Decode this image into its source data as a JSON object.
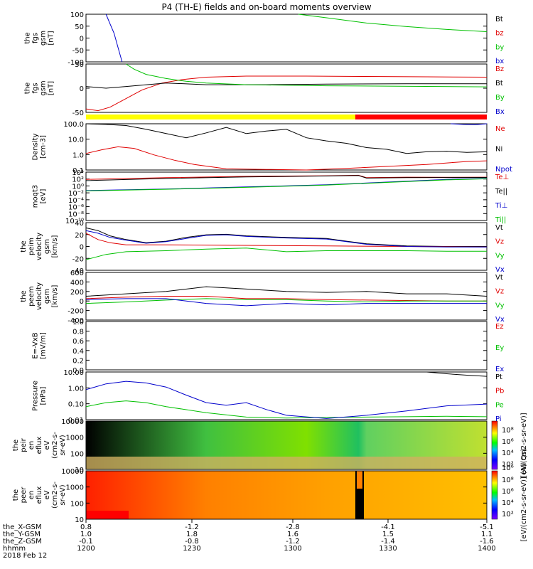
{
  "title": "P4 (TH-E) fields and on-board moments overview",
  "colors": {
    "black": "#000000",
    "red": "#e00000",
    "green": "#00c000",
    "blue": "#0000cc",
    "yellow": "#ffff00",
    "barRed": "#ff0000"
  },
  "time_axis": {
    "ticks": [
      "1200",
      "1230",
      "1300",
      "1330",
      "1400"
    ],
    "rows": [
      {
        "label": "the_X-GSM",
        "values": [
          "0.8",
          "-1.2",
          "-2.8",
          "-4.1",
          "-5.1"
        ]
      },
      {
        "label": "the_Y-GSM",
        "values": [
          "1.0",
          "1.8",
          "1.6",
          "1.5",
          "1.1"
        ]
      },
      {
        "label": "the_Z-GSM",
        "values": [
          "-0.1",
          "-0.8",
          "-1.2",
          "-1.4",
          "-1.6"
        ]
      },
      {
        "label": "hhmm",
        "values": [
          "1200",
          "1230",
          "1300",
          "1330",
          "1400"
        ]
      }
    ],
    "date": "2018 Feb 12"
  },
  "chart_data": [
    {
      "type": "line",
      "ylabel": [
        "the",
        "fgs",
        "gsm",
        "[nT]"
      ],
      "ylim": [
        -100,
        100
      ],
      "yticks": [
        "100",
        "50",
        "0",
        "-50",
        "-100"
      ],
      "series": [
        {
          "name": "Bt",
          "color": "black",
          "x": [
            0,
            17,
            57
          ],
          "y": [
            104,
            101,
            106
          ]
        },
        {
          "name": "bz",
          "color": "red",
          "x": [],
          "y": []
        },
        {
          "name": "by",
          "color": "green",
          "x": [
            53,
            60,
            70,
            80,
            90,
            100
          ],
          "y": [
            110,
            85,
            63,
            48,
            36,
            27
          ]
        },
        {
          "name": "bx",
          "color": "blue",
          "x": [
            5,
            6,
            7,
            8,
            9
          ],
          "y": [
            110,
            60,
            20,
            -40,
            -100
          ]
        }
      ]
    },
    {
      "type": "line",
      "ylabel": [
        "the",
        "fgs",
        "gsm",
        "[nT]"
      ],
      "ylim": [
        -80,
        60
      ],
      "yticks": [
        "50",
        "0",
        "-50"
      ],
      "series": [
        {
          "name": "Bz",
          "color": "red",
          "x": [
            0,
            3,
            6,
            10,
            14,
            19,
            24,
            30,
            40,
            55,
            70,
            85,
            100
          ],
          "y": [
            -70,
            -75,
            -65,
            -40,
            -15,
            5,
            15,
            22,
            25,
            25,
            24,
            23,
            22
          ]
        },
        {
          "name": "Bt",
          "color": "black",
          "x": [
            0,
            5,
            10,
            20,
            30,
            45,
            60,
            80,
            100
          ],
          "y": [
            -5,
            -10,
            -5,
            5,
            0,
            0,
            2,
            3,
            3
          ]
        },
        {
          "name": "By",
          "color": "green",
          "x": [
            10,
            12,
            15,
            20,
            25,
            30,
            40,
            60,
            100
          ],
          "y": [
            60,
            45,
            30,
            18,
            10,
            5,
            0,
            -3,
            -6
          ]
        },
        {
          "name": "Bx",
          "color": "blue",
          "x": [],
          "y": []
        }
      ]
    },
    {
      "type": "line",
      "scale": "log",
      "ylabel": [
        "Density",
        "[cm-3]"
      ],
      "ylim": [
        0.1,
        200
      ],
      "yticks": [
        "100.0",
        "10.0",
        "1.0",
        "0.1"
      ],
      "series": [
        {
          "name": "Ne",
          "color": "red",
          "x": [
            0,
            4,
            8,
            12,
            17,
            22,
            27,
            35,
            45,
            55,
            65,
            75,
            85,
            95,
            100
          ],
          "y": [
            1.5,
            2.8,
            4.5,
            3.5,
            1.2,
            0.5,
            0.25,
            0.12,
            0.11,
            0.1,
            0.13,
            0.18,
            0.25,
            0.4,
            0.45
          ]
        },
        {
          "name": "Ni",
          "color": "black",
          "x": [
            0,
            5,
            10,
            15,
            20,
            25,
            30,
            35,
            40,
            45,
            50,
            55,
            60,
            65,
            70,
            75,
            80,
            85,
            90,
            95,
            100
          ],
          "y": [
            200,
            180,
            150,
            80,
            40,
            20,
            45,
            110,
            40,
            60,
            80,
            20,
            12,
            8,
            4,
            3,
            1.5,
            2,
            2.2,
            1.8,
            2
          ]
        },
        {
          "name": "Npot",
          "color": "blue",
          "x": [
            91,
            94,
            97,
            100
          ],
          "y": [
            200,
            180,
            170,
            200
          ]
        }
      ]
    },
    {
      "type": "line",
      "scale": "log",
      "ylabel": [
        "moqt3",
        "[eV]"
      ],
      "ylim": [
        1,
        10000
      ],
      "yticks": [
        "10⁴",
        "10²",
        "10⁰",
        "10⁻²",
        "10⁻⁴",
        "10⁻⁶",
        "10⁻⁸",
        "10⁻¹⁰"
      ],
      "series": [
        {
          "name": "Te⊥",
          "color": "red",
          "x": [
            0,
            20,
            40,
            60,
            68,
            70,
            80,
            90,
            100
          ],
          "y": [
            2500,
            3500,
            4500,
            5000,
            5500,
            3500,
            3800,
            3700,
            3800
          ]
        },
        {
          "name": "Te||",
          "color": "black",
          "x": [
            0,
            20,
            40,
            60,
            68,
            70,
            80,
            100
          ],
          "y": [
            2000,
            3000,
            4000,
            4800,
            5200,
            3200,
            3500,
            3600
          ]
        },
        {
          "name": "Ti⊥",
          "color": "blue",
          "x": [
            0,
            20,
            40,
            60,
            75,
            90,
            100
          ],
          "y": [
            300,
            400,
            600,
            900,
            1500,
            2500,
            3000
          ]
        },
        {
          "name": "Ti||",
          "color": "green",
          "x": [
            0,
            20,
            40,
            60,
            75,
            90,
            100
          ],
          "y": [
            280,
            380,
            550,
            850,
            1400,
            2300,
            2800
          ]
        }
      ]
    },
    {
      "type": "line",
      "ylabel": [
        "the",
        "peim",
        "velocity",
        "gsm",
        "[km/s]"
      ],
      "ylim": [
        -40,
        50
      ],
      "yticks": [
        "40",
        "20",
        "0",
        "-20",
        "-40"
      ],
      "series": [
        {
          "name": "Vt",
          "color": "black",
          "x": [
            0,
            3,
            6,
            10,
            15,
            20,
            25,
            30,
            35,
            40,
            50,
            60,
            65,
            70,
            80,
            90,
            100
          ],
          "y": [
            40,
            35,
            25,
            18,
            12,
            15,
            22,
            27,
            28,
            25,
            22,
            20,
            15,
            10,
            6,
            5,
            5
          ]
        },
        {
          "name": "Vz",
          "color": "red",
          "x": [
            0,
            3,
            6,
            10,
            20,
            40,
            60,
            80,
            100
          ],
          "y": [
            30,
            18,
            12,
            8,
            8,
            7,
            6,
            5,
            4
          ]
        },
        {
          "name": "Vy",
          "color": "green",
          "x": [
            0,
            5,
            10,
            20,
            30,
            40,
            50,
            60,
            70,
            80,
            90,
            100
          ],
          "y": [
            -20,
            -10,
            -5,
            -3,
            0,
            2,
            -5,
            -3,
            -3,
            -3,
            -4,
            -4
          ]
        },
        {
          "name": "Vx",
          "color": "blue",
          "x": [
            0,
            3,
            6,
            10,
            15,
            20,
            25,
            30,
            35,
            40,
            50,
            60,
            65,
            70,
            80,
            90,
            100
          ],
          "y": [
            35,
            30,
            22,
            17,
            11,
            14,
            20,
            26,
            27,
            24,
            21,
            19,
            14,
            9,
            5,
            4,
            4
          ]
        }
      ]
    },
    {
      "type": "line",
      "ylabel": [
        "the",
        "peem",
        "velocity",
        "gsm",
        "[km/s]"
      ],
      "ylim": [
        -400,
        600
      ],
      "yticks": [
        "600",
        "400",
        "200",
        "0",
        "-200",
        "-400"
      ],
      "series": [
        {
          "name": "Vt",
          "color": "black",
          "x": [
            0,
            10,
            20,
            30,
            40,
            50,
            60,
            70,
            80,
            90,
            100
          ],
          "y": [
            100,
            150,
            200,
            300,
            250,
            200,
            180,
            200,
            150,
            150,
            100
          ]
        },
        {
          "name": "Vz",
          "color": "red",
          "x": [
            0,
            10,
            20,
            30,
            40,
            50,
            60,
            70,
            80,
            90,
            100
          ],
          "y": [
            50,
            80,
            100,
            100,
            50,
            50,
            30,
            20,
            10,
            0,
            0
          ]
        },
        {
          "name": "Vy",
          "color": "green",
          "x": [
            0,
            10,
            20,
            30,
            40,
            50,
            60,
            70,
            80,
            90,
            100
          ],
          "y": [
            -50,
            -20,
            20,
            50,
            30,
            30,
            0,
            -20,
            0,
            0,
            0
          ]
        },
        {
          "name": "Vx",
          "color": "blue",
          "x": [
            0,
            10,
            20,
            30,
            40,
            50,
            60,
            70,
            80,
            90,
            100
          ],
          "y": [
            30,
            50,
            50,
            -50,
            -100,
            -50,
            -80,
            -50,
            -50,
            -50,
            -50
          ]
        }
      ]
    },
    {
      "type": "line",
      "ylabel": [
        "E=-VxB",
        "[mV/m]"
      ],
      "ylim": [
        0,
        1
      ],
      "yticks": [
        "1.0",
        "0.8",
        "0.6",
        "0.4",
        "0.2",
        "0.0"
      ],
      "series": [
        {
          "name": "Ez",
          "color": "red",
          "x": [],
          "y": []
        },
        {
          "name": "Ey",
          "color": "green",
          "x": [],
          "y": []
        },
        {
          "name": "Ex",
          "color": "blue",
          "x": [],
          "y": []
        }
      ]
    },
    {
      "type": "line",
      "scale": "log",
      "ylabel": [
        "Pressure",
        "[nPa]"
      ],
      "ylim": [
        0.01,
        20
      ],
      "yticks": [
        "10.00",
        "1.00",
        "0.10",
        "0.01"
      ],
      "series": [
        {
          "name": "Pt",
          "color": "black",
          "x": [
            85,
            90,
            95,
            100
          ],
          "y": [
            20,
            15,
            12,
            10
          ]
        },
        {
          "name": "Pb",
          "color": "red",
          "x": [],
          "y": []
        },
        {
          "name": "Pe",
          "color": "green",
          "x": [
            0,
            5,
            10,
            15,
            20,
            30,
            40,
            50,
            60,
            70,
            80,
            90,
            100
          ],
          "y": [
            0.08,
            0.15,
            0.2,
            0.15,
            0.08,
            0.03,
            0.015,
            0.013,
            0.014,
            0.015,
            0.016,
            0.017,
            0.016
          ]
        },
        {
          "name": "Pi",
          "color": "blue",
          "x": [
            0,
            5,
            10,
            15,
            20,
            25,
            30,
            35,
            40,
            45,
            50,
            60,
            70,
            80,
            90,
            100
          ],
          "y": [
            1.2,
            3.0,
            4.5,
            3.5,
            1.8,
            0.5,
            0.15,
            0.1,
            0.15,
            0.05,
            0.02,
            0.012,
            0.02,
            0.04,
            0.09,
            0.12
          ]
        }
      ]
    },
    {
      "type": "heatmap",
      "ylabel": [
        "the",
        "peir",
        "en",
        "eflux",
        "eV",
        "(cm2-s-",
        "sr-eV)"
      ],
      "yticks": [
        "10000",
        "1000",
        "100",
        "10"
      ],
      "cbar_ticks": [
        "10⁸",
        "10⁶",
        "10⁴",
        "10²"
      ],
      "cbar_label": "[eV/(cm2-s-sr-eV)]"
    },
    {
      "type": "heatmap",
      "ylabel": [
        "the",
        "peer",
        "en",
        "eflux",
        "eV",
        "(cm2-s-",
        "sr-eV)"
      ],
      "yticks": [
        "10000",
        "1000",
        "100",
        "10"
      ],
      "cbar_ticks": [
        "10⁸",
        "10⁶",
        "10⁴",
        "10²"
      ],
      "cbar_label": "[eV/(cm2-s-sr-eV)] (All Qs)",
      "cbar_label_top": "10⁶"
    }
  ]
}
